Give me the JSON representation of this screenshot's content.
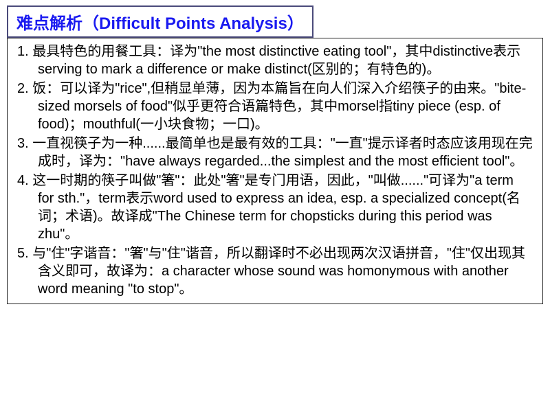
{
  "title": "难点解析（Difficult Points Analysis）",
  "items": [
    "1. 最具特色的用餐工具：译为\"the most distinctive eating tool\"，其中distinctive表示serving to mark a difference or make distinct(区别的；有特色的)。",
    "2. 饭：可以译为\"rice\",但稍显单薄，因为本篇旨在向人们深入介绍筷子的由来。\"bite-sized morsels of food\"似乎更符合语篇特色，其中morsel指tiny piece (esp. of food)；mouthful(一小块食物；一口)。",
    "3. 一直视筷子为一种......最简单也是最有效的工具：\"一直\"提示译者时态应该用现在完成时，译为：\"have always regarded...the simplest and the most efficient tool\"。",
    "4. 这一时期的筷子叫做\"箸\"：此处\"箸\"是专门用语，因此，\"叫做......\"可译为\"a term for sth.\"，term表示word used to express an idea, esp. a specialized concept(名词；术语)。故译成\"The Chinese term for chopsticks during this period was zhu\"。",
    "5. 与\"住\"字谐音：\"箸\"与\"住\"谐音，所以翻译时不必出现两次汉语拼音，\"住\"仅出现其含义即可，故译为：a character whose sound was homonymous with another word meaning \"to stop\"。"
  ],
  "colors": {
    "title_text": "#1a1af0",
    "title_border": "#4a4a7a",
    "body_text": "#000000",
    "content_border": "#222222",
    "background": "#ffffff"
  },
  "typography": {
    "title_fontsize": 24,
    "title_weight": "bold",
    "body_fontsize": 20,
    "line_height": 1.3
  }
}
